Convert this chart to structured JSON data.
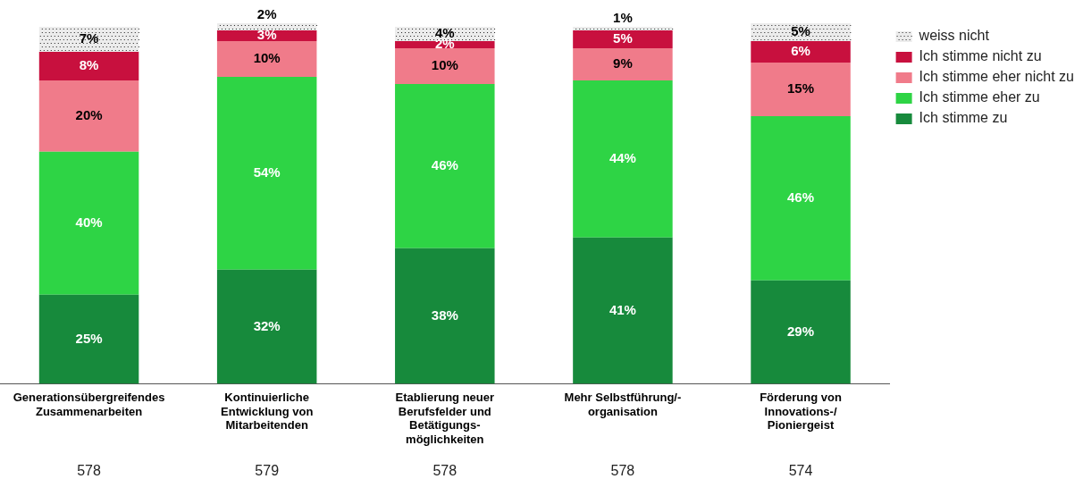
{
  "chart_data": {
    "type": "bar",
    "stacked": true,
    "legend": "top right",
    "grid": false,
    "categories": [
      "Generationsübergreifendes Zusammenarbeiten",
      "Kontinuierliche Entwicklung von Mitarbeitenden",
      "Etablierung neuer Berufsfelder und Betätigungs-möglichkeiten",
      "Mehr Selbstführung/-organisation",
      "Förderung von Innovations-/ Pioniergeist"
    ],
    "series": [
      {
        "name": "Ich stimme zu",
        "color": "#178a3c",
        "values": [
          25,
          32,
          38,
          41,
          29
        ],
        "value_labels": [
          "25%",
          "32%",
          "38%",
          "41%",
          "29%"
        ]
      },
      {
        "name": "Ich stimme eher zu",
        "color": "#2ed445",
        "values": [
          40,
          54,
          46,
          44,
          46
        ],
        "value_labels": [
          "40%",
          "54%",
          "46%",
          "44%",
          "46%"
        ]
      },
      {
        "name": "Ich stimme eher nicht zu",
        "color": "#f07b8a",
        "values": [
          20,
          10,
          10,
          9,
          15
        ],
        "value_labels": [
          "20%",
          "10%",
          "10%",
          "9%",
          "15%"
        ]
      },
      {
        "name": "Ich stimme nicht zu",
        "color": "#c8103e",
        "values": [
          8,
          3,
          2,
          5,
          6
        ],
        "value_labels": [
          "8%",
          "3%",
          "2%",
          "5%",
          "6%"
        ]
      },
      {
        "name": "weiss nicht",
        "color": "#ececec",
        "values": [
          7,
          2,
          4,
          1,
          5
        ],
        "value_labels": [
          "7%",
          "2%",
          "4%",
          "1%",
          "5%"
        ]
      }
    ],
    "annotations": [
      "578",
      "579",
      "578",
      "578",
      "574"
    ]
  }
}
